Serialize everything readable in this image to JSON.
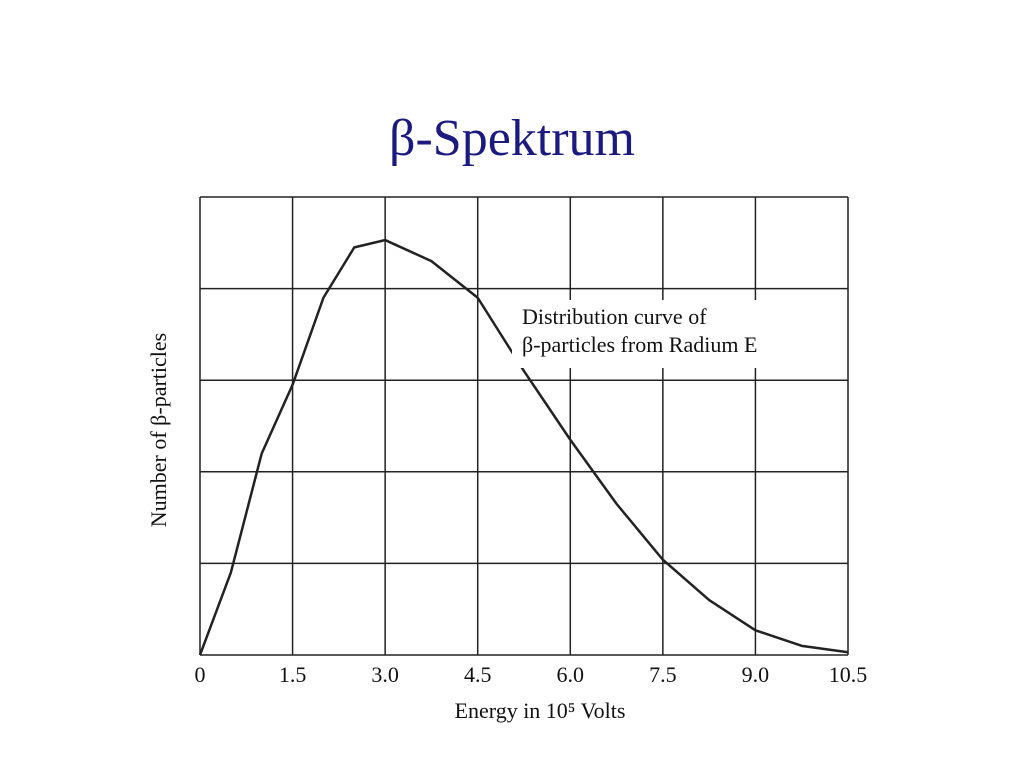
{
  "chart_data": {
    "type": "line",
    "title": "β-Spektrum",
    "annotation": [
      "Distribution curve of",
      "β-particles from Radium E"
    ],
    "x_label": "Energy in 10⁵ Volts",
    "y_label": "Number of β-particles",
    "x": [
      0,
      0.5,
      1.0,
      1.5,
      2.0,
      2.5,
      3.0,
      3.75,
      4.5,
      5.25,
      6.0,
      6.75,
      7.5,
      8.25,
      9.0,
      9.75,
      10.5
    ],
    "series": [
      {
        "name": "Distribution curve",
        "color": "#222222",
        "values": [
          0,
          0.9,
          2.2,
          2.95,
          3.9,
          4.45,
          4.53,
          4.3,
          3.9,
          3.1,
          2.35,
          1.65,
          1.04,
          0.6,
          0.27,
          0.1,
          0.03
        ]
      }
    ],
    "xlim": [
      0,
      10.5
    ],
    "xticks": [
      0,
      1.5,
      {
        "value": 3,
        "label": "3.0"
      },
      4.5,
      {
        "value": 6,
        "label": "6.0"
      },
      7.5,
      {
        "value": 9,
        "label": "9.0"
      },
      10.5
    ],
    "ylim": [
      0,
      5
    ],
    "yticks": [
      0,
      1,
      2,
      3,
      4,
      5
    ],
    "ytick_labels": false,
    "grid": true
  }
}
